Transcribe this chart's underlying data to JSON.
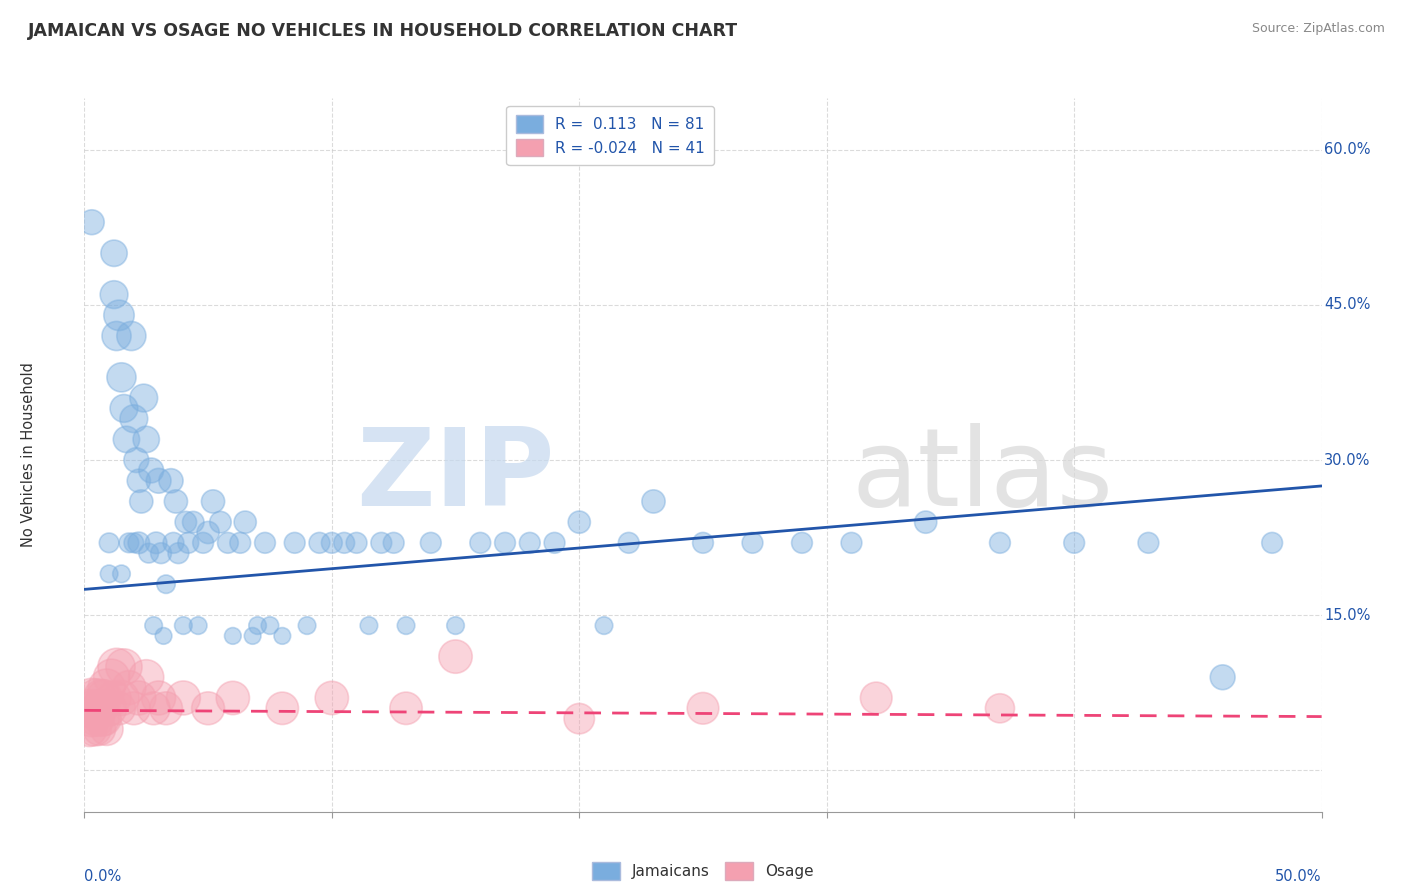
{
  "title": "JAMAICAN VS OSAGE NO VEHICLES IN HOUSEHOLD CORRELATION CHART",
  "source": "Source: ZipAtlas.com",
  "ylabel": "No Vehicles in Household",
  "blue_color": "#7aadde",
  "pink_color": "#f4a0b0",
  "line_blue": "#2255aa",
  "line_pink": "#ee4477",
  "xmin": 0.0,
  "xmax": 0.5,
  "ymin": -0.04,
  "ymax": 0.65,
  "blue_line_x": [
    0.0,
    0.5
  ],
  "blue_line_y": [
    0.175,
    0.275
  ],
  "pink_line_x": [
    0.0,
    0.5
  ],
  "pink_line_y": [
    0.058,
    0.052
  ],
  "jamaican_x": [
    0.003,
    0.01,
    0.01,
    0.012,
    0.012,
    0.013,
    0.014,
    0.015,
    0.015,
    0.016,
    0.017,
    0.018,
    0.019,
    0.02,
    0.02,
    0.021,
    0.022,
    0.022,
    0.023,
    0.024,
    0.025,
    0.026,
    0.027,
    0.028,
    0.029,
    0.03,
    0.031,
    0.032,
    0.033,
    0.035,
    0.036,
    0.037,
    0.038,
    0.04,
    0.041,
    0.042,
    0.044,
    0.046,
    0.048,
    0.05,
    0.052,
    0.055,
    0.058,
    0.06,
    0.063,
    0.065,
    0.068,
    0.07,
    0.073,
    0.075,
    0.08,
    0.085,
    0.09,
    0.095,
    0.1,
    0.105,
    0.11,
    0.115,
    0.12,
    0.125,
    0.13,
    0.14,
    0.15,
    0.16,
    0.17,
    0.18,
    0.19,
    0.2,
    0.21,
    0.22,
    0.23,
    0.25,
    0.27,
    0.29,
    0.31,
    0.34,
    0.37,
    0.4,
    0.43,
    0.46,
    0.48
  ],
  "jamaican_y": [
    0.53,
    0.22,
    0.19,
    0.5,
    0.46,
    0.42,
    0.44,
    0.38,
    0.19,
    0.35,
    0.32,
    0.22,
    0.42,
    0.34,
    0.22,
    0.3,
    0.28,
    0.22,
    0.26,
    0.36,
    0.32,
    0.21,
    0.29,
    0.14,
    0.22,
    0.28,
    0.21,
    0.13,
    0.18,
    0.28,
    0.22,
    0.26,
    0.21,
    0.14,
    0.24,
    0.22,
    0.24,
    0.14,
    0.22,
    0.23,
    0.26,
    0.24,
    0.22,
    0.13,
    0.22,
    0.24,
    0.13,
    0.14,
    0.22,
    0.14,
    0.13,
    0.22,
    0.14,
    0.22,
    0.22,
    0.22,
    0.22,
    0.14,
    0.22,
    0.22,
    0.14,
    0.22,
    0.14,
    0.22,
    0.22,
    0.22,
    0.22,
    0.24,
    0.14,
    0.22,
    0.26,
    0.22,
    0.22,
    0.22,
    0.22,
    0.24,
    0.22,
    0.22,
    0.22,
    0.09,
    0.22
  ],
  "jamaican_size": [
    40,
    25,
    20,
    45,
    50,
    55,
    60,
    55,
    20,
    50,
    45,
    25,
    55,
    50,
    25,
    40,
    35,
    30,
    35,
    50,
    45,
    25,
    40,
    20,
    30,
    40,
    28,
    18,
    22,
    38,
    28,
    35,
    28,
    20,
    30,
    28,
    30,
    20,
    28,
    32,
    35,
    30,
    28,
    18,
    28,
    32,
    18,
    20,
    28,
    20,
    18,
    28,
    20,
    28,
    28,
    28,
    28,
    20,
    28,
    28,
    20,
    28,
    20,
    28,
    28,
    28,
    28,
    32,
    20,
    28,
    35,
    28,
    28,
    28,
    28,
    32,
    28,
    28,
    28,
    40,
    28
  ],
  "osage_x": [
    0.001,
    0.002,
    0.003,
    0.003,
    0.004,
    0.004,
    0.005,
    0.005,
    0.006,
    0.006,
    0.007,
    0.007,
    0.008,
    0.008,
    0.009,
    0.009,
    0.01,
    0.011,
    0.012,
    0.013,
    0.014,
    0.015,
    0.016,
    0.018,
    0.02,
    0.022,
    0.025,
    0.028,
    0.03,
    0.033,
    0.04,
    0.05,
    0.06,
    0.08,
    0.1,
    0.13,
    0.15,
    0.2,
    0.25,
    0.32,
    0.37
  ],
  "osage_y": [
    0.06,
    0.04,
    0.07,
    0.05,
    0.06,
    0.04,
    0.07,
    0.05,
    0.06,
    0.04,
    0.07,
    0.05,
    0.07,
    0.05,
    0.08,
    0.04,
    0.06,
    0.09,
    0.07,
    0.1,
    0.06,
    0.07,
    0.1,
    0.08,
    0.06,
    0.07,
    0.09,
    0.06,
    0.07,
    0.06,
    0.07,
    0.06,
    0.07,
    0.06,
    0.07,
    0.06,
    0.11,
    0.05,
    0.06,
    0.07,
    0.06
  ],
  "osage_size": [
    90,
    80,
    100,
    85,
    90,
    75,
    95,
    80,
    85,
    70,
    90,
    80,
    85,
    75,
    90,
    70,
    80,
    85,
    75,
    90,
    70,
    80,
    85,
    75,
    70,
    75,
    80,
    70,
    75,
    70,
    75,
    70,
    72,
    68,
    72,
    68,
    72,
    60,
    65,
    65,
    55
  ]
}
